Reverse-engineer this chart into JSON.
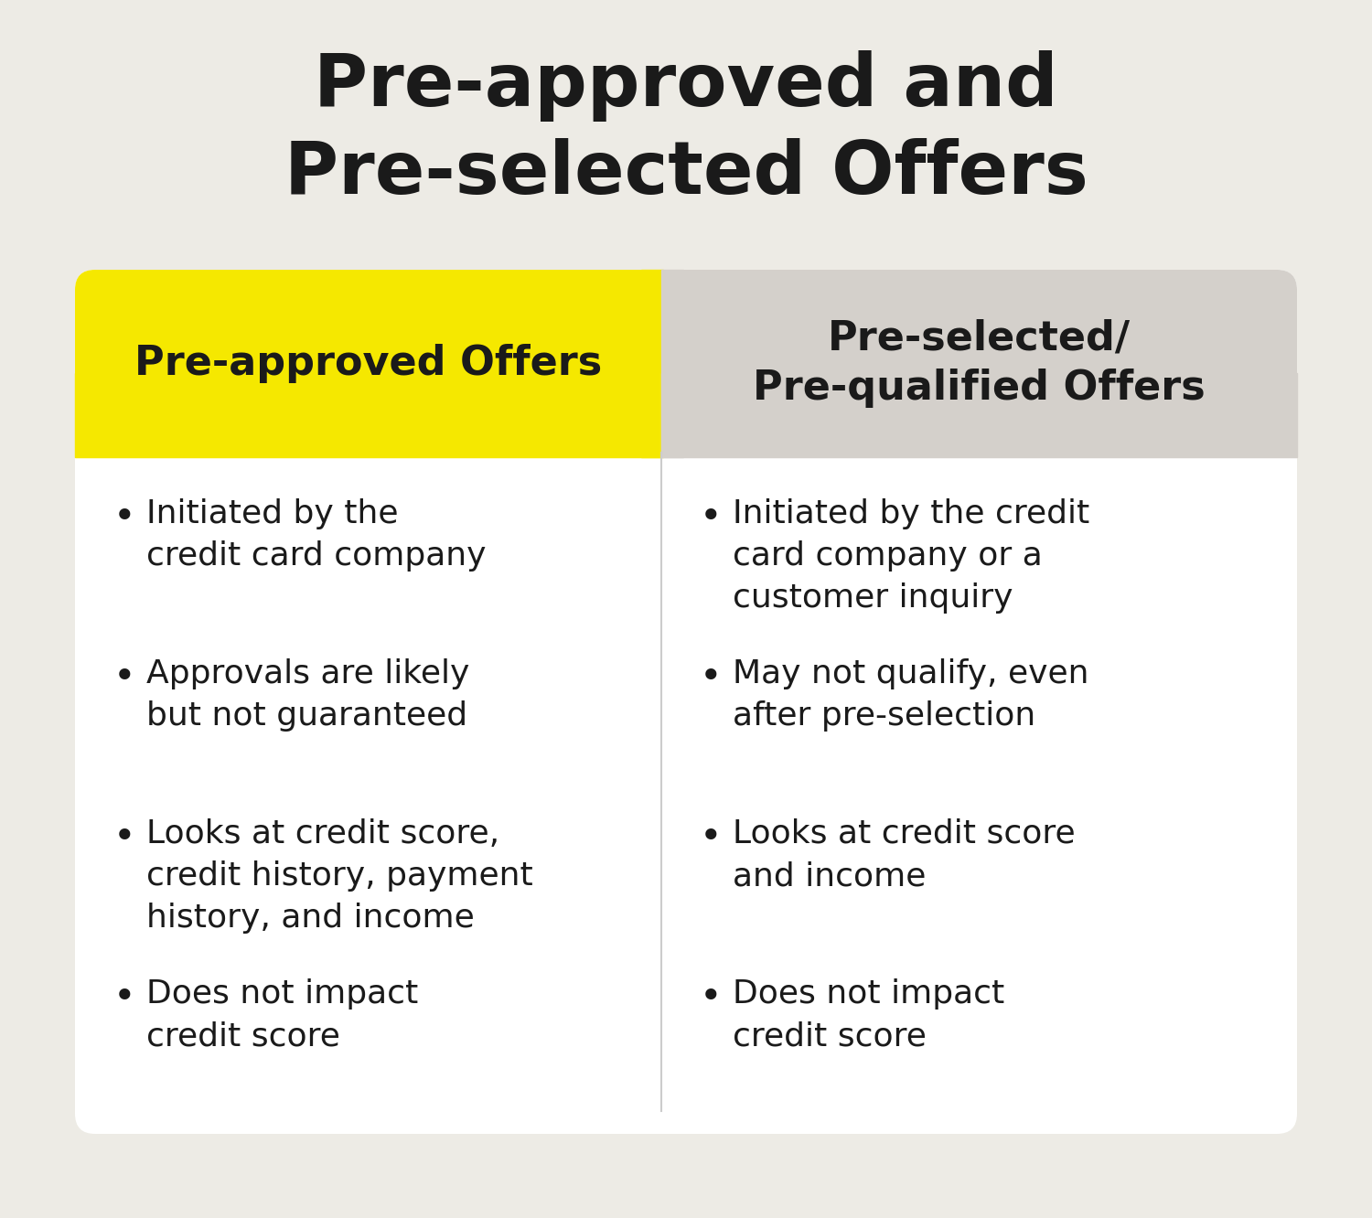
{
  "title_line1": "Pre-approved and",
  "title_line2": "Pre-selected Offers",
  "title_fontsize": 58,
  "title_color": "#1a1a1a",
  "background_color": "#edebe5",
  "card_background": "#ffffff",
  "left_header_bg": "#f5e800",
  "right_header_bg": "#d4d0cb",
  "left_header_text": "Pre-approved Offers",
  "right_header_text": "Pre-selected/\nPre-qualified Offers",
  "header_fontsize": 32,
  "header_text_color": "#1a1a1a",
  "bullet_fontsize": 26,
  "bullet_color": "#1a1a1a",
  "divider_color": "#cccccc",
  "left_bullets": [
    "Initiated by the\ncredit card company",
    "Approvals are likely\nbut not guaranteed",
    "Looks at credit score,\ncredit history, payment\nhistory, and income",
    "Does not impact\ncredit score"
  ],
  "right_bullets": [
    "Initiated by the credit\ncard company or a\ncustomer inquiry",
    "May not qualify, even\nafter pre-selection",
    "Looks at credit score\nand income",
    "Does not impact\ncredit score"
  ]
}
